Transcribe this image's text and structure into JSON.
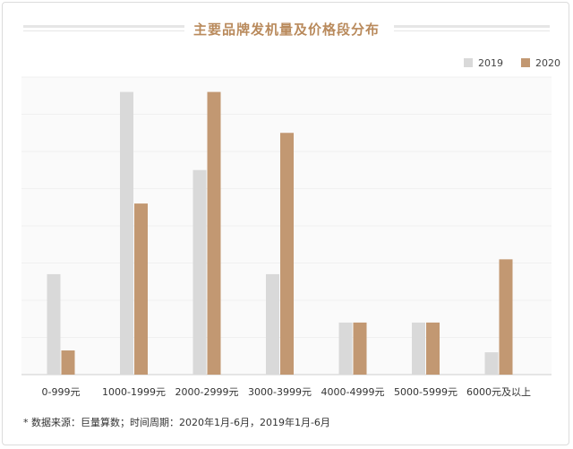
{
  "chart_data": {
    "type": "bar",
    "title": "主要品牌发机量及价格段分布",
    "categories": [
      "0-999元",
      "1000-1999元",
      "2000-2999元",
      "3000-3999元",
      "4000-4999元",
      "5000-5999元",
      "6000元及以上"
    ],
    "series": [
      {
        "name": "2019",
        "color": "#d9d9d9",
        "values": [
          27,
          76,
          55,
          27,
          14,
          14,
          6
        ]
      },
      {
        "name": "2020",
        "color": "#c29872",
        "values": [
          6.5,
          46,
          76,
          65,
          14,
          14,
          31
        ]
      }
    ],
    "ylim": [
      0,
      80
    ],
    "grid": true,
    "legend_position": "top-right",
    "xlabel": "",
    "ylabel": ""
  },
  "footnote": "* 数据来源：巨量算数；时间周期：2020年1月-6月，2019年1月-6月"
}
